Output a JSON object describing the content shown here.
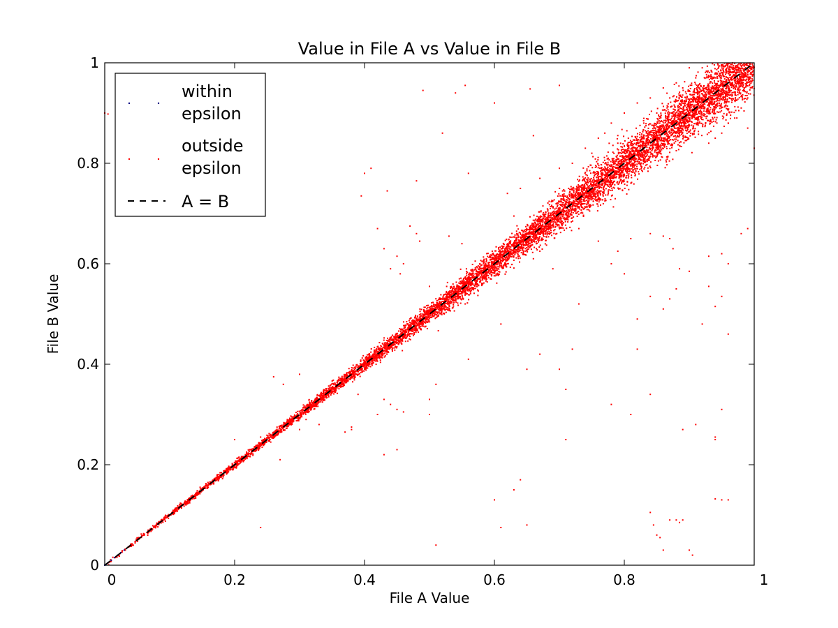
{
  "chart_data": {
    "type": "scatter",
    "title": "Value in File A vs Value in File B",
    "xlabel": "File A Value",
    "ylabel": "File B Value",
    "xlim": [
      0,
      1
    ],
    "ylim": [
      0,
      1
    ],
    "xticks": [
      {
        "value": 0,
        "label": "0"
      },
      {
        "value": 0.2,
        "label": "0.2"
      },
      {
        "value": 0.4,
        "label": "0.4"
      },
      {
        "value": 0.6,
        "label": "0.6"
      },
      {
        "value": 0.8,
        "label": "0.8"
      },
      {
        "value": 1,
        "label": "1"
      }
    ],
    "yticks": [
      {
        "value": 0,
        "label": "0"
      },
      {
        "value": 0.2,
        "label": "0.2"
      },
      {
        "value": 0.4,
        "label": "0.4"
      },
      {
        "value": 0.6,
        "label": "0.6"
      },
      {
        "value": 0.8,
        "label": "0.8"
      },
      {
        "value": 1,
        "label": "1"
      }
    ],
    "grid": false,
    "legend": {
      "placement": "top-left",
      "entries": [
        {
          "key": "within",
          "lines": [
            "within",
            "epsilon"
          ],
          "color": "#000080",
          "style": "point"
        },
        {
          "key": "outside",
          "lines": [
            "outside",
            "epsilon"
          ],
          "color": "#ff0000",
          "style": "point"
        },
        {
          "key": "identity",
          "lines": [
            "A = B"
          ],
          "color": "#000000",
          "style": "dashed-line"
        }
      ]
    },
    "series": [
      {
        "name": "within epsilon",
        "color": "#000080",
        "points": [
          [
            0.0,
            0.0
          ],
          [
            0.005,
            0.005
          ],
          [
            0.01,
            0.01
          ],
          [
            0.015,
            0.015
          ],
          [
            0.02,
            0.02
          ],
          [
            0.025,
            0.025
          ],
          [
            0.03,
            0.03
          ]
        ]
      },
      {
        "name": "outside epsilon",
        "color": "#ff0000",
        "band": {
          "x_min": 0.0,
          "x_max": 1.0,
          "approx_count": 9000,
          "spread_at_0": 0.002,
          "spread_at_1": 0.03
        },
        "outliers": [
          [
            0.0,
            0.9
          ],
          [
            0.005,
            0.898
          ],
          [
            0.245,
            0.81
          ],
          [
            0.49,
            0.945
          ],
          [
            0.54,
            0.94
          ],
          [
            0.555,
            0.955
          ],
          [
            0.6,
            0.92
          ],
          [
            0.655,
            0.948
          ],
          [
            0.7,
            0.955
          ],
          [
            0.41,
            0.79
          ],
          [
            0.4,
            0.78
          ],
          [
            0.395,
            0.735
          ],
          [
            0.435,
            0.745
          ],
          [
            0.48,
            0.765
          ],
          [
            0.63,
            0.695
          ],
          [
            0.52,
            0.86
          ],
          [
            0.56,
            0.78
          ],
          [
            0.66,
            0.855
          ],
          [
            0.42,
            0.67
          ],
          [
            0.47,
            0.675
          ],
          [
            0.48,
            0.66
          ],
          [
            0.485,
            0.645
          ],
          [
            0.43,
            0.63
          ],
          [
            0.53,
            0.655
          ],
          [
            0.55,
            0.64
          ],
          [
            0.45,
            0.615
          ],
          [
            0.46,
            0.6
          ],
          [
            0.5,
            0.555
          ],
          [
            0.555,
            0.52
          ],
          [
            0.61,
            0.62
          ],
          [
            0.62,
            0.6
          ],
          [
            0.585,
            0.57
          ],
          [
            0.67,
            0.625
          ],
          [
            0.66,
            0.61
          ],
          [
            0.69,
            0.59
          ],
          [
            0.73,
            0.67
          ],
          [
            0.76,
            0.645
          ],
          [
            0.79,
            0.625
          ],
          [
            0.81,
            0.65
          ],
          [
            0.84,
            0.66
          ],
          [
            0.86,
            0.655
          ],
          [
            0.87,
            0.65
          ],
          [
            0.875,
            0.63
          ],
          [
            0.885,
            0.59
          ],
          [
            0.9,
            0.585
          ],
          [
            0.88,
            0.55
          ],
          [
            0.84,
            0.535
          ],
          [
            0.87,
            0.53
          ],
          [
            0.93,
            0.555
          ],
          [
            0.95,
            0.535
          ],
          [
            0.94,
            0.515
          ],
          [
            0.93,
            0.615
          ],
          [
            0.95,
            0.62
          ],
          [
            0.96,
            0.6
          ],
          [
            0.92,
            0.48
          ],
          [
            0.96,
            0.46
          ],
          [
            0.98,
            0.66
          ],
          [
            0.99,
            0.67
          ],
          [
            0.44,
            0.59
          ],
          [
            0.455,
            0.58
          ],
          [
            0.56,
            0.41
          ],
          [
            0.43,
            0.33
          ],
          [
            0.44,
            0.32
          ],
          [
            0.46,
            0.305
          ],
          [
            0.42,
            0.3
          ],
          [
            0.45,
            0.31
          ],
          [
            0.5,
            0.33
          ],
          [
            0.51,
            0.36
          ],
          [
            0.38,
            0.275
          ],
          [
            0.37,
            0.265
          ],
          [
            0.31,
            0.29
          ],
          [
            0.26,
            0.375
          ],
          [
            0.3,
            0.38
          ],
          [
            0.275,
            0.36
          ],
          [
            0.3,
            0.27
          ],
          [
            0.27,
            0.21
          ],
          [
            0.33,
            0.28
          ],
          [
            0.2,
            0.25
          ],
          [
            0.24,
            0.255
          ],
          [
            0.38,
            0.27
          ],
          [
            0.43,
            0.22
          ],
          [
            0.45,
            0.23
          ],
          [
            0.5,
            0.3
          ],
          [
            0.39,
            0.34
          ],
          [
            0.36,
            0.37
          ],
          [
            0.61,
            0.48
          ],
          [
            0.65,
            0.39
          ],
          [
            0.67,
            0.42
          ],
          [
            0.7,
            0.39
          ],
          [
            0.71,
            0.35
          ],
          [
            0.72,
            0.43
          ],
          [
            0.73,
            0.52
          ],
          [
            0.78,
            0.32
          ],
          [
            0.81,
            0.3
          ],
          [
            0.84,
            0.34
          ],
          [
            0.82,
            0.43
          ],
          [
            0.86,
            0.51
          ],
          [
            0.89,
            0.27
          ],
          [
            0.91,
            0.28
          ],
          [
            0.95,
            0.31
          ],
          [
            0.94,
            0.25
          ],
          [
            0.94,
            0.255
          ],
          [
            0.6,
            0.13
          ],
          [
            0.63,
            0.15
          ],
          [
            0.65,
            0.08
          ],
          [
            0.64,
            0.17
          ],
          [
            0.61,
            0.075
          ],
          [
            0.51,
            0.04
          ],
          [
            0.71,
            0.25
          ],
          [
            0.24,
            0.075
          ],
          [
            0.84,
            0.105
          ],
          [
            0.845,
            0.08
          ],
          [
            0.85,
            0.06
          ],
          [
            0.855,
            0.055
          ],
          [
            0.86,
            0.03
          ],
          [
            0.87,
            0.09
          ],
          [
            0.88,
            0.09
          ],
          [
            0.885,
            0.085
          ],
          [
            0.89,
            0.09
          ],
          [
            0.9,
            0.03
          ],
          [
            0.905,
            0.02
          ],
          [
            0.95,
            0.13
          ],
          [
            0.96,
            0.13
          ],
          [
            0.94,
            0.132
          ],
          [
            0.82,
            0.49
          ],
          [
            0.8,
            0.58
          ],
          [
            0.78,
            0.6
          ],
          [
            0.67,
            0.77
          ],
          [
            0.7,
            0.79
          ],
          [
            0.72,
            0.8
          ],
          [
            0.74,
            0.83
          ],
          [
            0.75,
            0.82
          ],
          [
            0.62,
            0.74
          ],
          [
            0.64,
            0.75
          ],
          [
            0.99,
            0.87
          ],
          [
            1.0,
            0.83
          ],
          [
            0.99,
            0.98
          ],
          [
            0.985,
            0.95
          ],
          [
            0.99,
            0.93
          ],
          [
            0.98,
            0.91
          ],
          [
            0.97,
            0.89
          ],
          [
            0.96,
            0.88
          ],
          [
            0.95,
            0.86
          ],
          [
            0.93,
            0.84
          ],
          [
            0.94,
            0.85
          ],
          [
            0.91,
            0.97
          ],
          [
            0.9,
            0.99
          ],
          [
            0.92,
            0.99
          ],
          [
            0.88,
            0.96
          ],
          [
            0.86,
            0.95
          ],
          [
            0.84,
            0.93
          ],
          [
            0.82,
            0.92
          ],
          [
            0.8,
            0.9
          ],
          [
            0.78,
            0.88
          ],
          [
            0.77,
            0.86
          ],
          [
            0.76,
            0.85
          ],
          [
            0.79,
            0.84
          ],
          [
            0.83,
            0.88
          ],
          [
            0.85,
            0.9
          ],
          [
            0.87,
            0.93
          ],
          [
            0.89,
            0.95
          ]
        ]
      },
      {
        "name": "A = B",
        "color": "#000000",
        "style": "dashed",
        "points": [
          [
            0,
            0
          ],
          [
            1,
            1
          ]
        ]
      }
    ]
  }
}
